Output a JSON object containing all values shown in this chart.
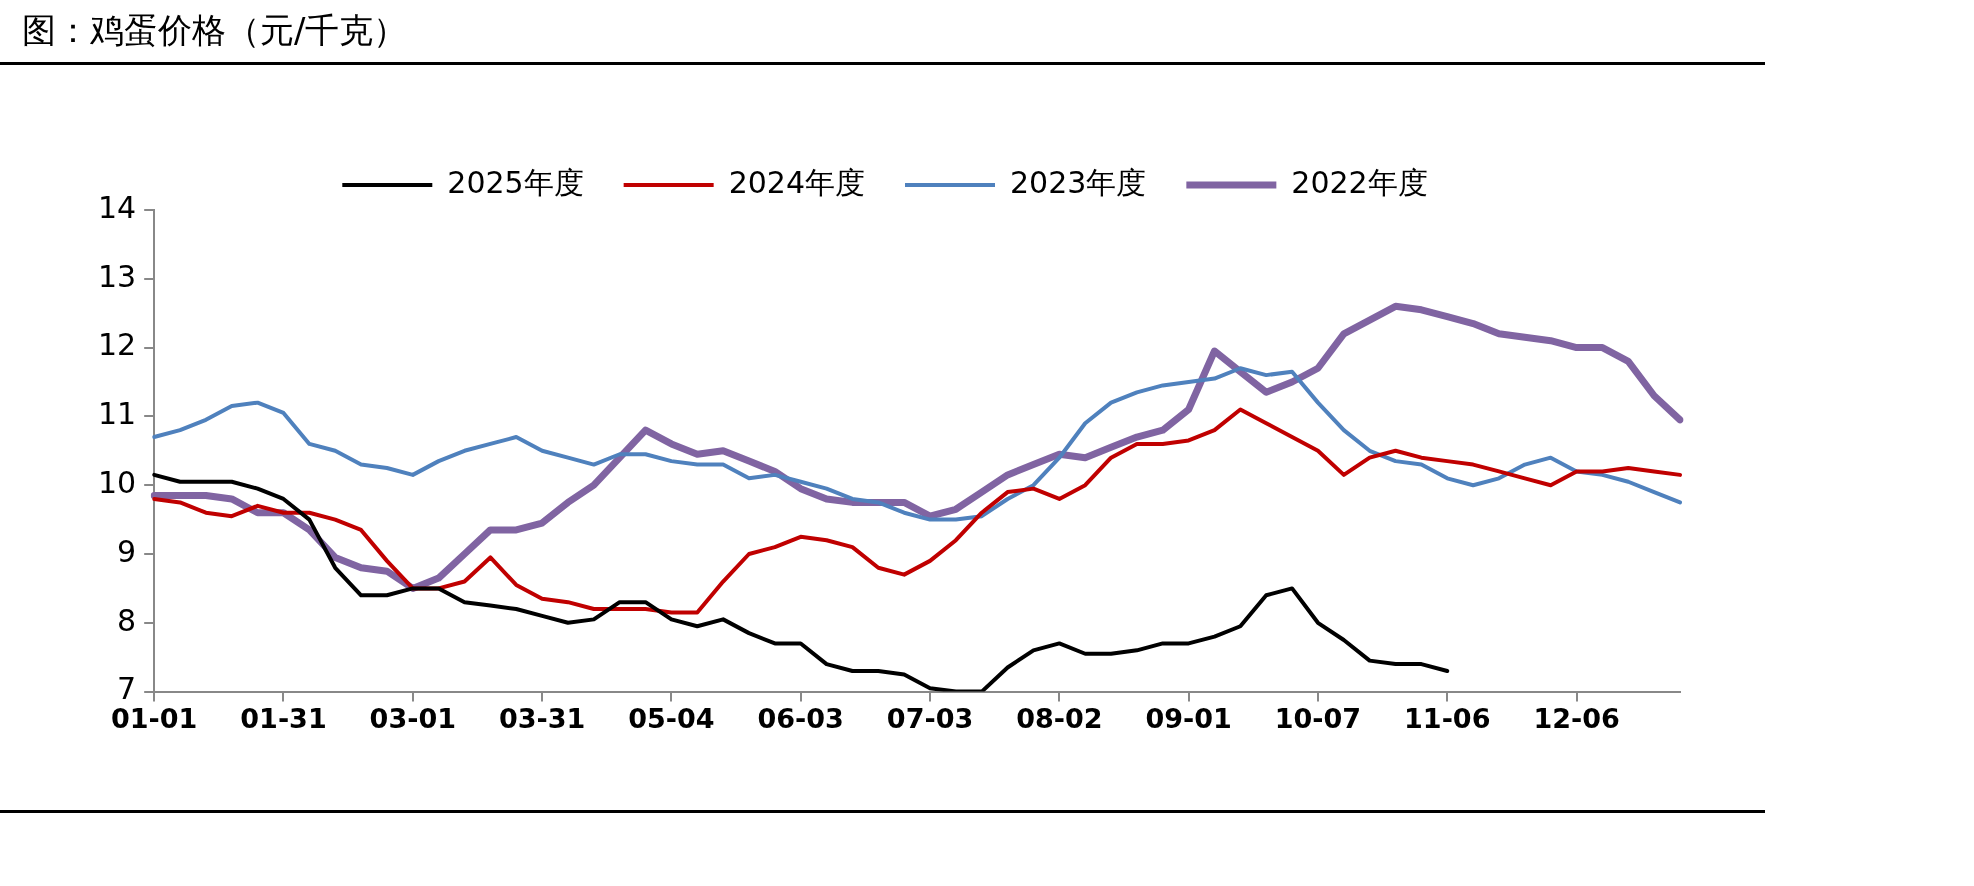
{
  "chart_data": {
    "type": "line",
    "title": "图：鸡蛋价格（元/千克）",
    "categories": [
      "01-01",
      null,
      null,
      null,
      null,
      "01-31",
      null,
      null,
      null,
      null,
      "03-01",
      null,
      null,
      null,
      null,
      "03-31",
      null,
      null,
      null,
      null,
      "05-04",
      null,
      null,
      null,
      null,
      "06-03",
      null,
      null,
      null,
      null,
      "07-03",
      null,
      null,
      null,
      null,
      "08-02",
      null,
      null,
      null,
      null,
      "09-01",
      null,
      null,
      null,
      null,
      "10-07",
      null,
      null,
      null,
      null,
      "11-06",
      null,
      null,
      null,
      null,
      "12-06",
      null,
      null,
      null,
      null
    ],
    "series": [
      {
        "name": "2025年度",
        "color": "#000000",
        "values": [
          10.15,
          10.05,
          10.05,
          10.05,
          9.95,
          9.8,
          9.5,
          8.8,
          8.4,
          8.4,
          8.5,
          8.5,
          8.3,
          8.25,
          8.2,
          8.1,
          8.0,
          8.05,
          8.3,
          8.3,
          8.05,
          7.95,
          8.05,
          7.85,
          7.7,
          7.7,
          7.4,
          7.3,
          7.3,
          7.25,
          7.05,
          7.0,
          7.0,
          7.35,
          7.6,
          7.7,
          7.55,
          7.55,
          7.6,
          7.7,
          7.7,
          7.8,
          7.95,
          8.4,
          8.5,
          8.0,
          7.75,
          7.45,
          7.4,
          7.4,
          7.3,
          null,
          null,
          null,
          null,
          null,
          null,
          null,
          null,
          null
        ]
      },
      {
        "name": "2024年度",
        "color": "#c00000",
        "values": [
          9.8,
          9.75,
          9.6,
          9.55,
          9.7,
          9.6,
          9.6,
          9.5,
          9.35,
          8.9,
          8.5,
          8.5,
          8.6,
          8.95,
          8.55,
          8.35,
          8.3,
          8.2,
          8.2,
          8.2,
          8.15,
          8.15,
          8.6,
          9.0,
          9.1,
          9.25,
          9.2,
          9.1,
          8.8,
          8.7,
          8.9,
          9.2,
          9.6,
          9.9,
          9.95,
          9.8,
          10.0,
          10.4,
          10.6,
          10.6,
          10.65,
          10.8,
          11.1,
          10.9,
          10.7,
          10.5,
          10.15,
          10.4,
          10.5,
          10.4,
          10.35,
          10.3,
          10.2,
          10.1,
          10.0,
          10.2,
          10.2,
          10.25,
          10.2,
          10.15
        ]
      },
      {
        "name": "2023年度",
        "color": "#4f81bd",
        "values": [
          10.7,
          10.8,
          10.95,
          11.15,
          11.2,
          11.05,
          10.6,
          10.5,
          10.3,
          10.25,
          10.15,
          10.35,
          10.5,
          10.6,
          10.7,
          10.5,
          10.4,
          10.3,
          10.45,
          10.45,
          10.35,
          10.3,
          10.3,
          10.1,
          10.15,
          10.05,
          9.95,
          9.8,
          9.75,
          9.6,
          9.5,
          9.5,
          9.55,
          9.8,
          10.0,
          10.4,
          10.9,
          11.2,
          11.35,
          11.45,
          11.5,
          11.55,
          11.7,
          11.6,
          11.65,
          11.2,
          10.8,
          10.5,
          10.35,
          10.3,
          10.1,
          10.0,
          10.1,
          10.3,
          10.4,
          10.2,
          10.15,
          10.05,
          9.9,
          9.75
        ]
      },
      {
        "name": "2022年度",
        "color": "#8064a2",
        "values": [
          9.85,
          9.85,
          9.85,
          9.8,
          9.6,
          9.6,
          9.35,
          8.95,
          8.8,
          8.75,
          8.5,
          8.65,
          9.0,
          9.35,
          9.35,
          9.45,
          9.75,
          10.0,
          10.4,
          10.8,
          10.6,
          10.45,
          10.5,
          10.35,
          10.2,
          9.95,
          9.8,
          9.75,
          9.75,
          9.75,
          9.55,
          9.65,
          9.9,
          10.15,
          10.3,
          10.45,
          10.4,
          10.55,
          10.7,
          10.8,
          11.1,
          11.95,
          11.65,
          11.35,
          11.5,
          11.7,
          12.2,
          12.4,
          12.6,
          12.55,
          12.45,
          12.35,
          12.2,
          12.15,
          12.1,
          12.0,
          12.0,
          11.8,
          11.3,
          10.95
        ]
      }
    ],
    "ylim": [
      7,
      14
    ],
    "yticks": [
      7,
      8,
      9,
      10,
      11,
      12,
      13,
      14
    ],
    "grid": false,
    "legend": "top",
    "marker": "none",
    "line_style": "solid"
  }
}
